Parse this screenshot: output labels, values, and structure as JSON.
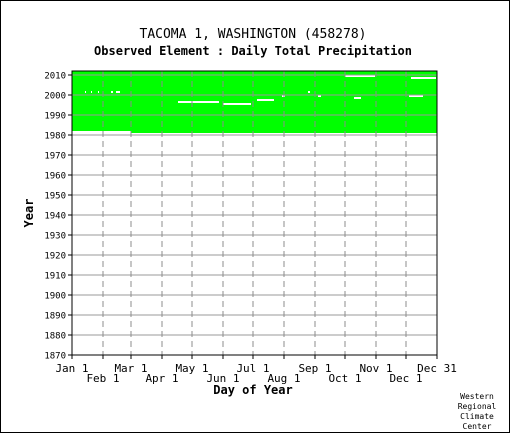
{
  "chart_data": {
    "type": "heatmap",
    "title": "TACOMA 1, WASHINGTON   (458278)",
    "subtitle": "Observed Element : Daily Total Precipitation",
    "xlabel": "Day of Year",
    "ylabel": "Year",
    "xlim": [
      1,
      366
    ],
    "ylim": [
      1870,
      2012
    ],
    "grid": true,
    "yticks": [
      2010,
      2000,
      1990,
      1980,
      1970,
      1960,
      1950,
      1940,
      1930,
      1920,
      1910,
      1900,
      1890,
      1880,
      1870
    ],
    "xticks_top_row": [
      {
        "label": "Jan 1",
        "day": 1
      },
      {
        "label": "Mar 1",
        "day": 60
      },
      {
        "label": "May 1",
        "day": 121
      },
      {
        "label": "Jul 1",
        "day": 182
      },
      {
        "label": "Sep 1",
        "day": 244
      },
      {
        "label": "Nov 1",
        "day": 305
      },
      {
        "label": "Dec 31",
        "day": 366
      }
    ],
    "xticks_bottom_row": [
      {
        "label": "Feb 1",
        "day": 32
      },
      {
        "label": "Apr 1",
        "day": 91
      },
      {
        "label": "Jun 1",
        "day": 152
      },
      {
        "label": "Aug 1",
        "day": 213
      },
      {
        "label": "Oct 1",
        "day": 274
      },
      {
        "label": "Dec 1",
        "day": 335
      }
    ],
    "data_color": "#00ff00",
    "missing_color": "#ffffff",
    "observed_periods": [
      {
        "start_year": 1982,
        "end_year": 2011,
        "start_day": 1,
        "end_day": 366
      },
      {
        "start_year": 1981,
        "end_year": 1981,
        "start_day": 60,
        "end_day": 366
      }
    ],
    "missing_segments": [
      {
        "year": 2001,
        "start_day": 14,
        "end_day": 15
      },
      {
        "year": 2001,
        "start_day": 20,
        "end_day": 21
      },
      {
        "year": 2001,
        "start_day": 27,
        "end_day": 28
      },
      {
        "year": 2001,
        "start_day": 40,
        "end_day": 42
      },
      {
        "year": 2001,
        "start_day": 45,
        "end_day": 49
      },
      {
        "year": 1996,
        "start_day": 107,
        "end_day": 148
      },
      {
        "year": 1995,
        "start_day": 152,
        "end_day": 180
      },
      {
        "year": 1997,
        "start_day": 186,
        "end_day": 203
      },
      {
        "year": 1999,
        "start_day": 211,
        "end_day": 214
      },
      {
        "year": 2001,
        "start_day": 237,
        "end_day": 239
      },
      {
        "year": 1999,
        "start_day": 247,
        "end_day": 250
      },
      {
        "year": 2009,
        "start_day": 274,
        "end_day": 304
      },
      {
        "year": 1998,
        "start_day": 283,
        "end_day": 290
      },
      {
        "year": 2008,
        "start_day": 340,
        "end_day": 365
      },
      {
        "year": 1999,
        "start_day": 338,
        "end_day": 352
      }
    ]
  },
  "credit": [
    "Western",
    "Regional",
    "Climate",
    "Center"
  ]
}
